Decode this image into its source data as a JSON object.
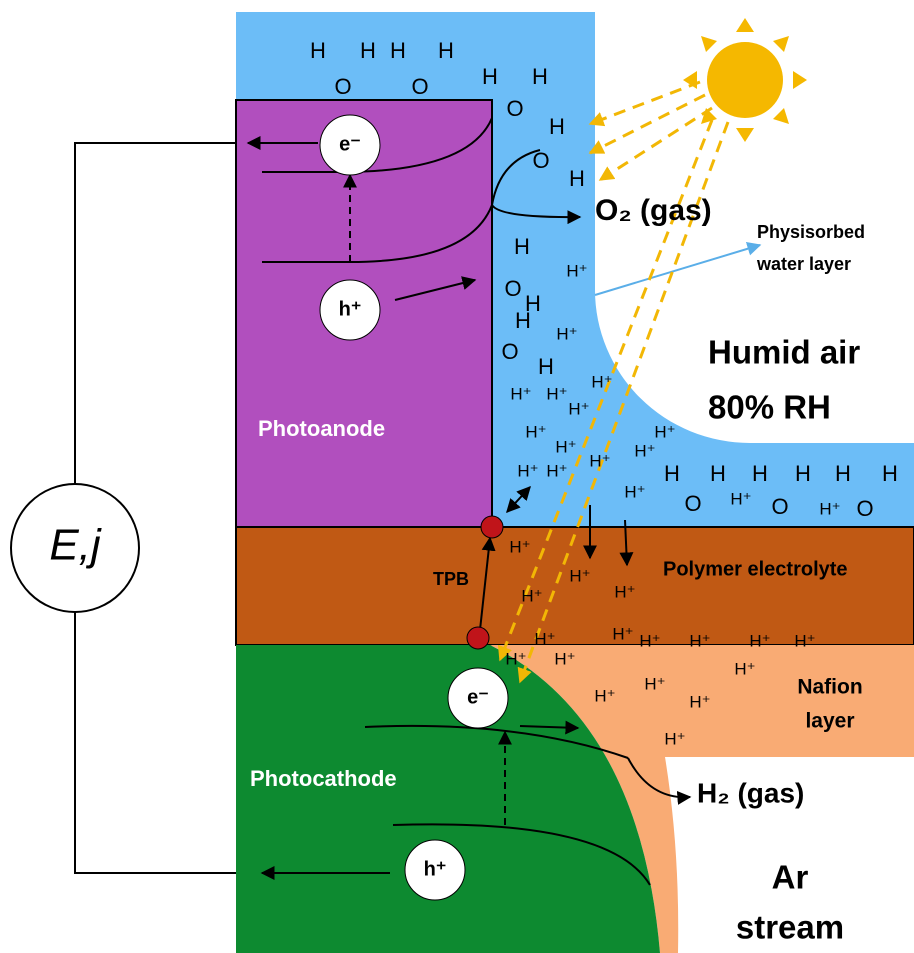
{
  "labels": {
    "photoanode": "Photoanode",
    "tpb": "TPB",
    "polymer": "Polymer electrolyte",
    "photocathode": "Photocathode",
    "nafion_1": "Nafion",
    "nafion_2": "layer",
    "humid_1": "Humid air",
    "humid_2": "80% RH",
    "physisorbed_1": "Physisorbed",
    "physisorbed_2": "water layer",
    "o2": "O₂ (gas)",
    "h2": "H₂ (gas)",
    "ar_1": "Ar",
    "ar_2": "stream"
  },
  "circuit": "E,j",
  "carriers": [
    "e⁻",
    "h⁺",
    "e⁻",
    "h⁺"
  ],
  "water_molecules": [
    [
      "H",
      "O",
      "H"
    ],
    [
      "H",
      "O",
      "H"
    ],
    [
      "H",
      "O",
      "H"
    ],
    [
      "H",
      "O",
      "H"
    ],
    [
      "H",
      "O",
      "H"
    ],
    [
      "H",
      "O",
      "H"
    ],
    [
      "H",
      "O",
      "H"
    ],
    [
      "H",
      "O",
      "H"
    ],
    [
      "H",
      "O",
      "H"
    ]
  ],
  "protons": [
    "H⁺",
    "H⁺",
    "H⁺",
    "H⁺",
    "H⁺",
    "H⁺",
    "H⁺",
    "H⁺",
    "H⁺",
    "H⁺",
    "H⁺",
    "H⁺",
    "H⁺",
    "H⁺",
    "H⁺",
    "H⁺",
    "H⁺",
    "H⁺",
    "H⁺",
    "H⁺",
    "H⁺",
    "H⁺",
    "H⁺",
    "H⁺",
    "H⁺",
    "H⁺",
    "H⁺",
    "H⁺",
    "H⁺",
    "H⁺",
    "H⁺",
    "H⁺",
    "H⁺"
  ]
}
